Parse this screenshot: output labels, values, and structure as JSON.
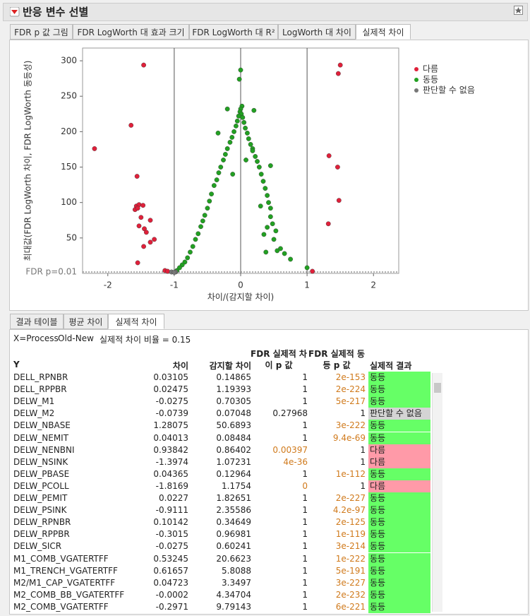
{
  "header": {
    "title": "반응 변수 선별"
  },
  "tabs": [
    "FDR p 값 그림",
    "FDR LogWorth 대 효과 크기",
    "FDR LogWorth 대 R²",
    "LogWorth 대 차이",
    "실제적 차이"
  ],
  "chart_data": {
    "type": "scatter",
    "x_label": "차이/(감지할 차이)",
    "y_label": "최대값(FDR LogWorth 차이, FDR LogWorth 동등성)",
    "xlim": [
      -2.38,
      2.38
    ],
    "xticks": [
      -2,
      -1,
      0,
      1,
      2
    ],
    "ylim": [
      0,
      318
    ],
    "yticks": [
      50,
      100,
      150,
      200,
      250,
      300
    ],
    "vlines": [
      -1,
      0,
      1
    ],
    "hline": {
      "value": 2,
      "label": "FDR p=0.01"
    },
    "series": [
      {
        "name": "다름",
        "color": "#e0203a",
        "cell_color": "#ff9aa8",
        "x": [
          -2.2,
          -1.65,
          -1.46,
          -1.56,
          -1.57,
          -1.53,
          -1.47,
          -1.59,
          -1.55,
          -1.5,
          -1.53,
          -1.45,
          -1.42,
          -1.36,
          -1.3,
          -1.36,
          -1.46,
          -1.55,
          -1.14,
          -1.1,
          1.08,
          1.32,
          1.33,
          1.47,
          1.5,
          1.46,
          1.48
        ],
        "y": [
          176,
          209,
          294,
          137,
          95,
          97,
          96,
          90,
          92,
          79,
          67,
          63,
          58,
          75,
          48,
          44,
          38,
          15,
          4,
          3,
          3,
          70,
          166,
          282,
          294,
          150,
          103
        ]
      },
      {
        "name": "동등",
        "color": "#22a022",
        "cell_color": "#66ff66",
        "x": [
          0,
          -0.02,
          0.02,
          0,
          -0.01,
          0.01,
          -0.03,
          0.03,
          -0.05,
          0.05,
          -0.07,
          0.07,
          -0.1,
          0.1,
          -0.13,
          0.12,
          -0.16,
          0.15,
          -0.2,
          0.18,
          -0.23,
          0.22,
          -0.26,
          0.25,
          -0.3,
          0.28,
          -0.33,
          0.31,
          -0.36,
          0.34,
          -0.4,
          0.37,
          -0.44,
          0.4,
          -0.47,
          0.42,
          -0.5,
          0.45,
          -0.54,
          0.45,
          -0.57,
          0.48,
          -0.6,
          0.4,
          -0.64,
          0.53,
          -0.68,
          0.5,
          -0.72,
          0.35,
          -0.76,
          0.6,
          -0.8,
          0.55,
          -0.84,
          0.66,
          -0.88,
          0.75,
          -0.92,
          1.0,
          -0.96,
          0.38,
          0.3,
          -0.34,
          0.2,
          -0.2,
          0.45,
          -0.12,
          0.08,
          0.18
        ],
        "y": [
          287,
          274,
          236,
          232,
          228,
          225,
          222,
          220,
          215,
          213,
          208,
          205,
          200,
          198,
          192,
          190,
          185,
          182,
          176,
          176,
          168,
          165,
          160,
          158,
          150,
          150,
          142,
          140,
          132,
          130,
          124,
          120,
          112,
          110,
          102,
          100,
          92,
          92,
          82,
          80,
          74,
          70,
          66,
          65,
          56,
          60,
          48,
          48,
          38,
          55,
          30,
          35,
          22,
          32,
          16,
          28,
          12,
          20,
          8,
          8,
          4,
          30,
          95,
          198,
          230,
          232,
          152,
          140,
          160,
          173
        ]
      },
      {
        "name": "판단할 수 없음",
        "color": "#777777",
        "cell_color": "#d4d4d4",
        "x": [
          -1.04,
          -0.98,
          -1.0
        ],
        "y": [
          2,
          2,
          1.5
        ]
      }
    ]
  },
  "sub_tabs": [
    "결과 테이블",
    "평균 차이",
    "실제적 차이"
  ],
  "table": {
    "info": [
      "X=Process",
      "Old-New",
      "실제적 차이 비율 = 0.15"
    ],
    "columns": [
      "Y",
      "차이",
      "감지할 차이",
      "FDR 실제적 차이 p 값",
      "FDR 실제적 동등 p 값",
      "실제적 결과"
    ],
    "rows": [
      [
        "DELL_RPNBR",
        "0.03105",
        "0.14865",
        "1",
        "2e-153",
        "동등"
      ],
      [
        "DELL_RPPBR",
        "0.02475",
        "1.19393",
        "1",
        "2e-224",
        "동등"
      ],
      [
        "DELW_M1",
        "-0.0275",
        "0.70305",
        "1",
        "5e-217",
        "동등"
      ],
      [
        "DELW_M2",
        "-0.0739",
        "0.07048",
        "0.27968",
        "1",
        "판단할 수 없음"
      ],
      [
        "DELW_NBASE",
        "1.28075",
        "50.6893",
        "1",
        "3e-222",
        "동등"
      ],
      [
        "DELW_NEMIT",
        "0.04013",
        "0.08484",
        "1",
        "9.4e-69",
        "동등"
      ],
      [
        "DELW_NENBNI",
        "0.93842",
        "0.86402",
        "0.00397",
        "1",
        "다름"
      ],
      [
        "DELW_NSINK",
        "-1.3974",
        "1.07231",
        "4e-36",
        "1",
        "다름"
      ],
      [
        "DELW_PBASE",
        "0.04365",
        "0.12964",
        "1",
        "1e-112",
        "동등"
      ],
      [
        "DELW_PCOLL",
        "-1.8169",
        "1.1754",
        "0",
        "1",
        "다름"
      ],
      [
        "DELW_PEMIT",
        "0.0227",
        "1.82651",
        "1",
        "2e-227",
        "동등"
      ],
      [
        "DELW_PSINK",
        "-0.9111",
        "2.35586",
        "1",
        "4.2e-97",
        "동등"
      ],
      [
        "DELW_RPNBR",
        "0.10142",
        "0.34649",
        "1",
        "2e-125",
        "동등"
      ],
      [
        "DELW_RPPBR",
        "-0.3015",
        "0.96981",
        "1",
        "1e-119",
        "동등"
      ],
      [
        "DELW_SICR",
        "-0.0275",
        "0.60241",
        "1",
        "3e-214",
        "동등"
      ],
      [
        "M1_COMB_VGATERTFF",
        "0.53245",
        "20.6623",
        "1",
        "1e-222",
        "동등"
      ],
      [
        "M1_TRENCH_VGATERTFF",
        "0.61657",
        "5.8088",
        "1",
        "5e-191",
        "동등"
      ],
      [
        "M2/M1_CAP_VGATERTFF",
        "0.04723",
        "3.3497",
        "1",
        "3e-227",
        "동등"
      ],
      [
        "M2_COMB_BB_VGATERTFF",
        "-0.0002",
        "4.34704",
        "1",
        "2e-232",
        "동등"
      ],
      [
        "M2_COMB_VGATERTFF",
        "-0.2971",
        "9.79143",
        "1",
        "6e-221",
        "동등"
      ]
    ]
  }
}
